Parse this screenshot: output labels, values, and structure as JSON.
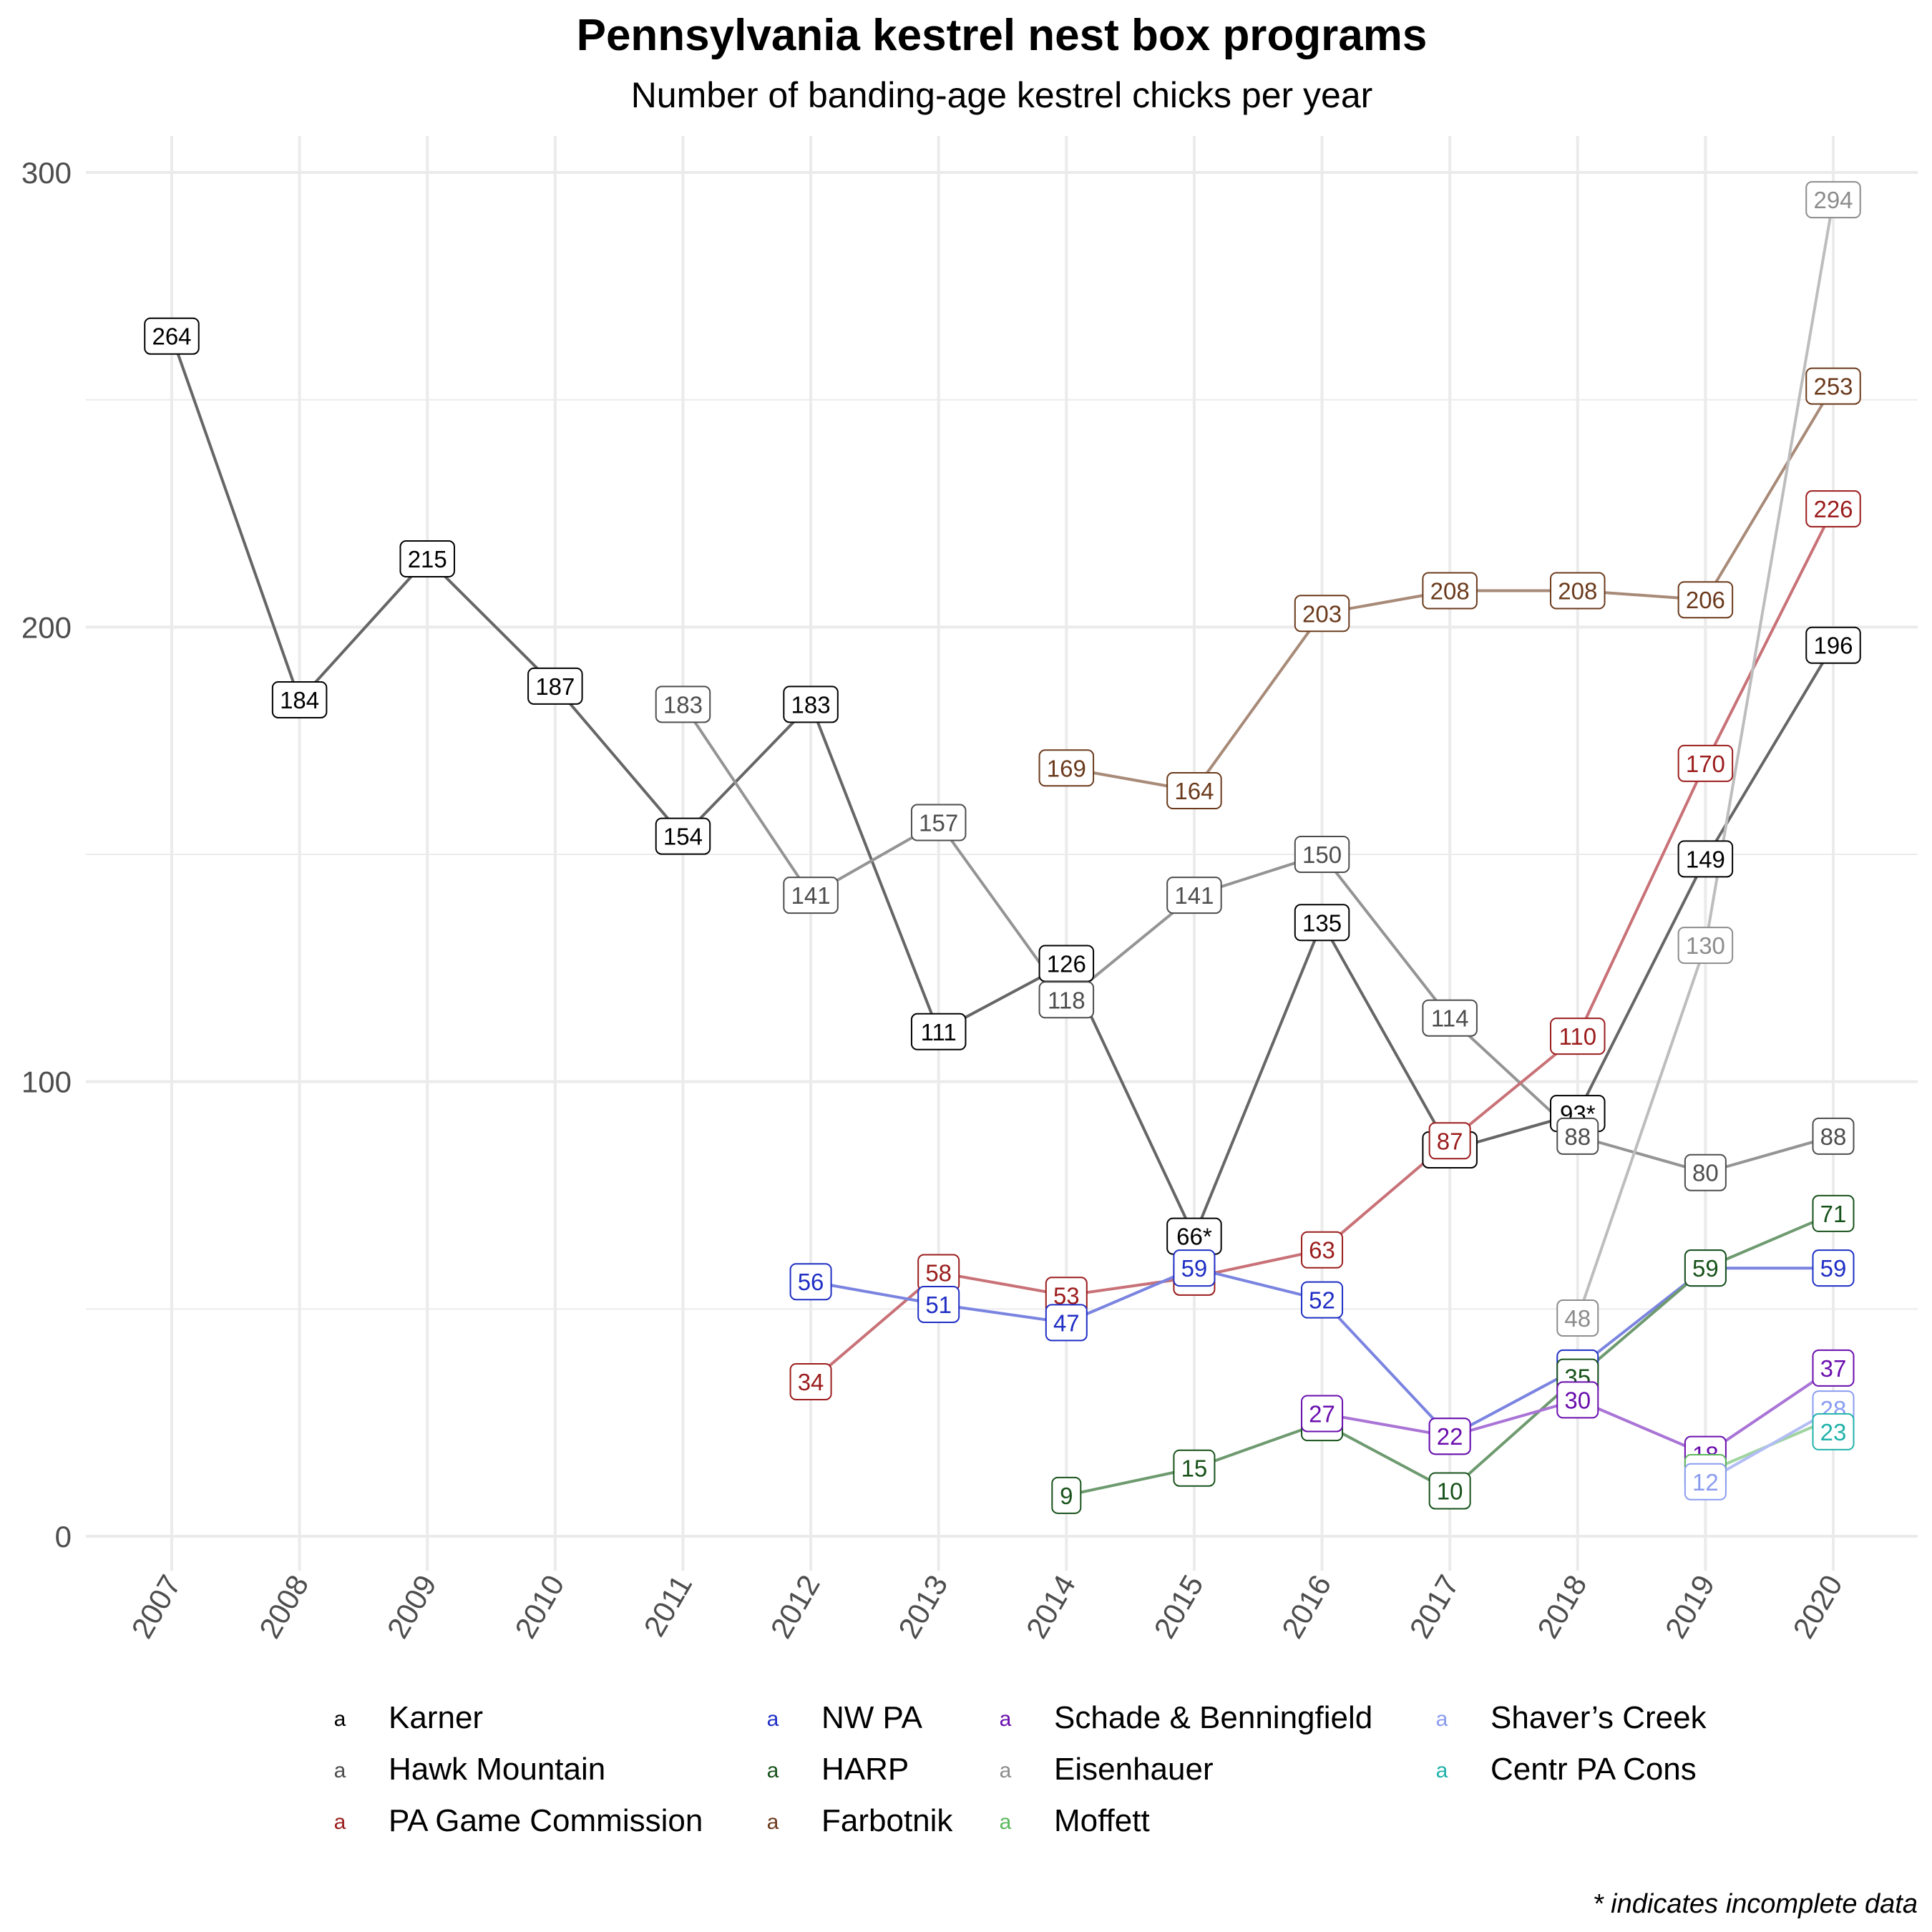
{
  "chart_data": {
    "type": "line",
    "title": "Pennsylvania kestrel nest box programs",
    "subtitle": "Number of banding-age kestrel chicks per year",
    "caption": "* indicates incomplete data",
    "xlabel": "",
    "ylabel": "",
    "ylim": [
      0,
      300
    ],
    "xlim": [
      2007,
      2020
    ],
    "y_ticks": [
      "0",
      "100",
      "200",
      "300"
    ],
    "x_ticks": [
      "2007",
      "2008",
      "2009",
      "2010",
      "2011",
      "2012",
      "2013",
      "2014",
      "2015",
      "2016",
      "2017",
      "2018",
      "2019",
      "2020"
    ],
    "grid": true,
    "legend_position": "bottom",
    "legend_key_glyph": "a",
    "series": [
      {
        "name": "Karner",
        "color": "#000000",
        "line_color": "#666666",
        "points": [
          {
            "x": 2007,
            "y": 264,
            "label": "264"
          },
          {
            "x": 2008,
            "y": 184,
            "label": "184"
          },
          {
            "x": 2009,
            "y": 215,
            "label": "215"
          },
          {
            "x": 2010,
            "y": 187,
            "label": "187"
          },
          {
            "x": 2011,
            "y": 154,
            "label": "154"
          },
          {
            "x": 2012,
            "y": 183,
            "label": "183"
          },
          {
            "x": 2013,
            "y": 111,
            "label": "111"
          },
          {
            "x": 2014,
            "y": 126,
            "label": "126"
          },
          {
            "x": 2015,
            "y": 66,
            "label": "66*"
          },
          {
            "x": 2016,
            "y": 135,
            "label": "135"
          },
          {
            "x": 2017,
            "y": 85,
            "label": "85*"
          },
          {
            "x": 2018,
            "y": 93,
            "label": "93*"
          },
          {
            "x": 2019,
            "y": 149,
            "label": "149"
          },
          {
            "x": 2020,
            "y": 196,
            "label": "196"
          }
        ]
      },
      {
        "name": "Hawk Mountain",
        "color": "#4d4d4d",
        "line_color": "#949494",
        "points": [
          {
            "x": 2011,
            "y": 183,
            "label": "183"
          },
          {
            "x": 2012,
            "y": 141,
            "label": "141"
          },
          {
            "x": 2013,
            "y": 157,
            "label": "157"
          },
          {
            "x": 2014,
            "y": 118,
            "label": "118"
          },
          {
            "x": 2015,
            "y": 141,
            "label": "141"
          },
          {
            "x": 2016,
            "y": 150,
            "label": "150"
          },
          {
            "x": 2017,
            "y": 114,
            "label": "114"
          },
          {
            "x": 2018,
            "y": 88,
            "label": "88"
          },
          {
            "x": 2019,
            "y": 80,
            "label": "80"
          },
          {
            "x": 2020,
            "y": 88,
            "label": "88"
          }
        ]
      },
      {
        "name": "PA Game Commission",
        "color": "#9b1c1c",
        "line_color": "#c87177",
        "points": [
          {
            "x": 2012,
            "y": 34,
            "label": "34"
          },
          {
            "x": 2013,
            "y": 58,
            "label": "58"
          },
          {
            "x": 2014,
            "y": 53,
            "label": "53"
          },
          {
            "x": 2015,
            "y": 57,
            "label": "57"
          },
          {
            "x": 2016,
            "y": 63,
            "label": "63"
          },
          {
            "x": 2017,
            "y": 87,
            "label": "87"
          },
          {
            "x": 2018,
            "y": 110,
            "label": "110"
          },
          {
            "x": 2019,
            "y": 170,
            "label": "170"
          },
          {
            "x": 2020,
            "y": 226,
            "label": "226"
          }
        ]
      },
      {
        "name": "NW PA",
        "color": "#1f2ec4",
        "line_color": "#7a84e0",
        "points": [
          {
            "x": 2012,
            "y": 56,
            "label": "56"
          },
          {
            "x": 2013,
            "y": 51,
            "label": "51"
          },
          {
            "x": 2014,
            "y": 47,
            "label": "47"
          },
          {
            "x": 2015,
            "y": 59,
            "label": "59"
          },
          {
            "x": 2016,
            "y": 52,
            "label": "52"
          },
          {
            "x": 2017,
            "y": 22,
            "label": "22"
          },
          {
            "x": 2018,
            "y": 37,
            "label": "37"
          },
          {
            "x": 2019,
            "y": 59,
            "label": "59"
          },
          {
            "x": 2020,
            "y": 59,
            "label": "59"
          }
        ]
      },
      {
        "name": "HARP",
        "color": "#17521a",
        "line_color": "#6e9a6f",
        "points": [
          {
            "x": 2014,
            "y": 9,
            "label": "9"
          },
          {
            "x": 2015,
            "y": 15,
            "label": "15"
          },
          {
            "x": 2016,
            "y": 25,
            "label": "25"
          },
          {
            "x": 2017,
            "y": 10,
            "label": "10"
          },
          {
            "x": 2018,
            "y": 35,
            "label": "35"
          },
          {
            "x": 2019,
            "y": 59,
            "label": "59"
          },
          {
            "x": 2020,
            "y": 71,
            "label": "71"
          }
        ]
      },
      {
        "name": "Farbotnik",
        "color": "#6b3a1c",
        "line_color": "#a88a78",
        "points": [
          {
            "x": 2014,
            "y": 169,
            "label": "169"
          },
          {
            "x": 2015,
            "y": 164,
            "label": "164"
          },
          {
            "x": 2016,
            "y": 203,
            "label": "203"
          },
          {
            "x": 2017,
            "y": 208,
            "label": "208"
          },
          {
            "x": 2018,
            "y": 208,
            "label": "208"
          },
          {
            "x": 2019,
            "y": 206,
            "label": "206"
          },
          {
            "x": 2020,
            "y": 253,
            "label": "253"
          }
        ]
      },
      {
        "name": "Schade & Benningfield",
        "color": "#6a0dad",
        "line_color": "#a974d6",
        "points": [
          {
            "x": 2016,
            "y": 27,
            "label": "27"
          },
          {
            "x": 2017,
            "y": 22,
            "label": "22"
          },
          {
            "x": 2018,
            "y": 30,
            "label": "30"
          },
          {
            "x": 2019,
            "y": 18,
            "label": "18"
          },
          {
            "x": 2020,
            "y": 37,
            "label": "37"
          }
        ]
      },
      {
        "name": "Eisenhauer",
        "color": "#8c8c8c",
        "line_color": "#bdbdbd",
        "points": [
          {
            "x": 2018,
            "y": 48,
            "label": "48"
          },
          {
            "x": 2019,
            "y": 130,
            "label": "130"
          },
          {
            "x": 2020,
            "y": 294,
            "label": "294"
          }
        ]
      },
      {
        "name": "Moffett",
        "color": "#5cb85c",
        "line_color": "#9fd49f",
        "points": [
          {
            "x": 2019,
            "y": 14,
            "label": "14"
          },
          {
            "x": 2020,
            "y": 26,
            "label": "26"
          }
        ]
      },
      {
        "name": "Shaver’s Creek",
        "color": "#8a9cf0",
        "line_color": "#b2bdf5",
        "points": [
          {
            "x": 2019,
            "y": 12,
            "label": "12"
          },
          {
            "x": 2020,
            "y": 28,
            "label": "28"
          }
        ]
      },
      {
        "name": "Centr PA Cons",
        "color": "#20b2aa",
        "line_color": "#7fd3cd",
        "points": [
          {
            "x": 2020,
            "y": 23,
            "label": "23"
          }
        ]
      }
    ]
  }
}
